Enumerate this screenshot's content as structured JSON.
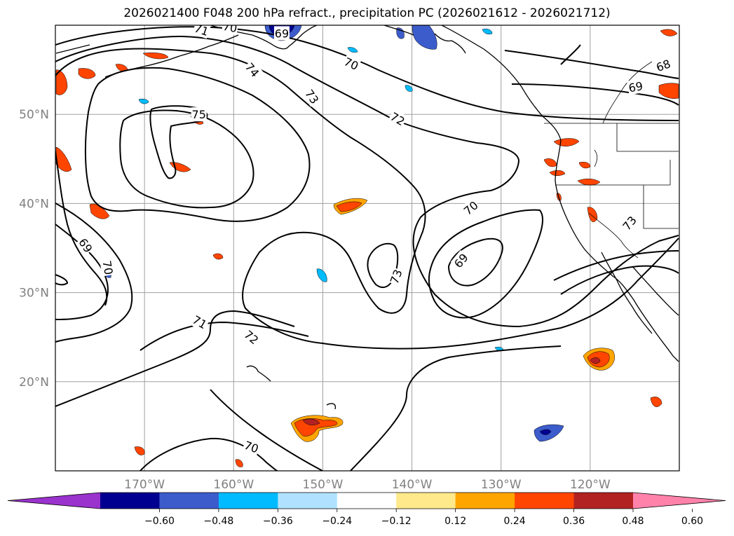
{
  "title": "2026021400 F048 200 hPa refract., precipitation PC (2026021612 - 2026021712)",
  "map": {
    "lon_range": [
      -180,
      -110
    ],
    "lat_range": [
      10,
      60
    ],
    "lat_ticks": [
      {
        "value": 50,
        "label": "50°N"
      },
      {
        "value": 40,
        "label": "40°N"
      },
      {
        "value": 30,
        "label": "30°N"
      },
      {
        "value": 20,
        "label": "20°N"
      }
    ],
    "lon_ticks": [
      {
        "value": -170,
        "label": "170°W"
      },
      {
        "value": -160,
        "label": "160°W"
      },
      {
        "value": -150,
        "label": "150°W"
      },
      {
        "value": -140,
        "label": "140°W"
      },
      {
        "value": -130,
        "label": "130°W"
      },
      {
        "value": -120,
        "label": "120°W"
      }
    ],
    "grid": true
  },
  "contour_labels": [
    {
      "text": "71",
      "lon": -163.6,
      "lat": 59.5,
      "rot": 18
    },
    {
      "text": "70",
      "lon": -160.4,
      "lat": 59.8,
      "rot": 10
    },
    {
      "text": "69",
      "lon": -154.6,
      "lat": 59.1,
      "rot": 0
    },
    {
      "text": "70",
      "lon": -146.8,
      "lat": 55.7,
      "rot": 25
    },
    {
      "text": "74",
      "lon": -157.9,
      "lat": 55.0,
      "rot": 50
    },
    {
      "text": "73",
      "lon": -151.2,
      "lat": 52.0,
      "rot": 55
    },
    {
      "text": "72",
      "lon": -141.6,
      "lat": 49.5,
      "rot": 30
    },
    {
      "text": "75",
      "lon": -163.9,
      "lat": 50.0,
      "rot": 0
    },
    {
      "text": "68",
      "lon": -111.8,
      "lat": 55.5,
      "rot": -20
    },
    {
      "text": "69",
      "lon": -114.9,
      "lat": 53.1,
      "rot": -10
    },
    {
      "text": "70",
      "lon": -133.4,
      "lat": 39.5,
      "rot": -40
    },
    {
      "text": "69",
      "lon": -134.5,
      "lat": 33.6,
      "rot": -50
    },
    {
      "text": "73",
      "lon": -141.8,
      "lat": 31.8,
      "rot": -70
    },
    {
      "text": "73",
      "lon": -115.6,
      "lat": 37.8,
      "rot": -50
    },
    {
      "text": "69",
      "lon": -176.6,
      "lat": 35.3,
      "rot": 55
    },
    {
      "text": "70",
      "lon": -174.1,
      "lat": 32.8,
      "rot": 80
    },
    {
      "text": "71",
      "lon": -163.8,
      "lat": 26.7,
      "rot": 30
    },
    {
      "text": "72",
      "lon": -158.0,
      "lat": 25.0,
      "rot": 40
    },
    {
      "text": "70",
      "lon": -158.0,
      "lat": 12.7,
      "rot": 20
    }
  ],
  "colorbar": {
    "ticks": [
      "−0.60",
      "−0.48",
      "−0.36",
      "−0.24",
      "−0.12",
      "0.12",
      "0.24",
      "0.36",
      "0.48",
      "0.60"
    ],
    "colors": [
      "#9a32cd",
      "#000090",
      "#3c5ccc",
      "#00bbff",
      "#b0e2ff",
      "#ffffff",
      "#ffe98a",
      "#ffa500",
      "#ff4500",
      "#b22222",
      "#ff82ab"
    ]
  }
}
